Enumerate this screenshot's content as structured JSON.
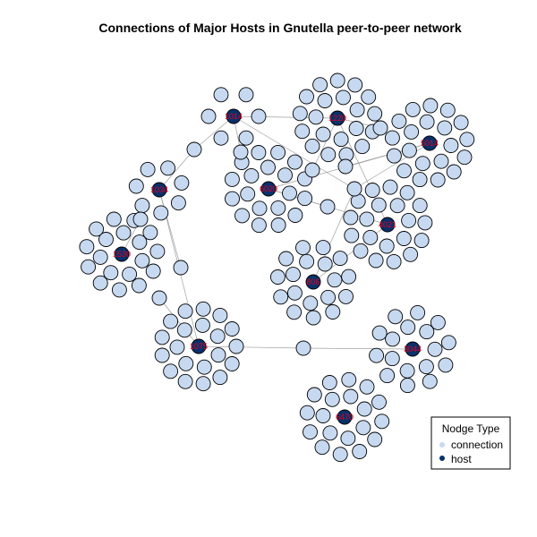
{
  "title": "Connections of Major Hosts in Gnutella peer-to-peer network",
  "legend": {
    "title": "Nodge Type",
    "items": [
      {
        "label": "connection",
        "color": "#c6d9f0"
      },
      {
        "label": "host",
        "color": "#08306b"
      }
    ]
  },
  "colors": {
    "connection": "#c6d9f0",
    "host": "#08306b",
    "edge": "#a0a0a0",
    "host_label": "#e8001c"
  },
  "chart_data": {
    "type": "network",
    "node_types": [
      "connection",
      "host"
    ],
    "hosts": [
      {
        "label": "1014"
      },
      {
        "label": "1220"
      },
      {
        "label": "5014"
      },
      {
        "label": "1034"
      },
      {
        "label": "6020"
      },
      {
        "label": "4021"
      },
      {
        "label": "1530"
      },
      {
        "label": "806"
      },
      {
        "label": "1075"
      },
      {
        "label": "3044"
      },
      {
        "label": "6470"
      }
    ]
  }
}
